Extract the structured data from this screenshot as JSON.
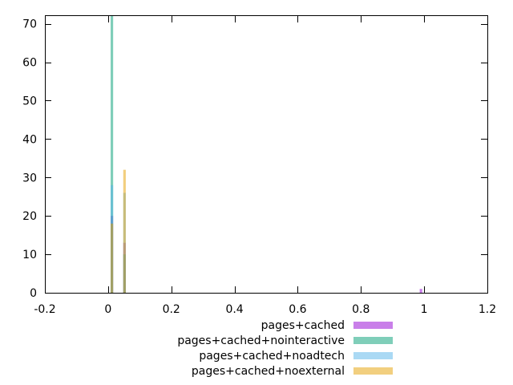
{
  "chart_data": {
    "type": "bar",
    "title": "",
    "xlabel": "",
    "ylabel": "",
    "xlim": [
      -0.2,
      1.2
    ],
    "ylim": [
      0,
      72
    ],
    "xticks": [
      "-0.2",
      "0",
      "0.2",
      "0.4",
      "0.6",
      "0.8",
      "1",
      "1.2"
    ],
    "yticks": [
      "0",
      "10",
      "20",
      "30",
      "40",
      "50",
      "60",
      "70"
    ],
    "grid": false,
    "legend_position": "bottom",
    "bin_width": 0.008,
    "series": [
      {
        "name": "pages+cached",
        "color": "#9400d3",
        "opacity": 0.5,
        "points": [
          {
            "x": 0.012,
            "y": 20
          },
          {
            "x": 0.052,
            "y": 13
          },
          {
            "x": 0.99,
            "y": 1
          }
        ]
      },
      {
        "name": "pages+cached+nointeractive",
        "color": "#009e73",
        "opacity": 0.5,
        "points": [
          {
            "x": 0.012,
            "y": 72
          },
          {
            "x": 0.052,
            "y": 10
          }
        ]
      },
      {
        "name": "pages+cached+noadtech",
        "color": "#56b4e9",
        "opacity": 0.5,
        "points": [
          {
            "x": 0.012,
            "y": 28
          },
          {
            "x": 0.052,
            "y": 26
          }
        ]
      },
      {
        "name": "pages+cached+noexternal",
        "color": "#e69f00",
        "opacity": 0.5,
        "points": [
          {
            "x": 0.012,
            "y": 18
          },
          {
            "x": 0.052,
            "y": 32
          }
        ]
      }
    ]
  }
}
